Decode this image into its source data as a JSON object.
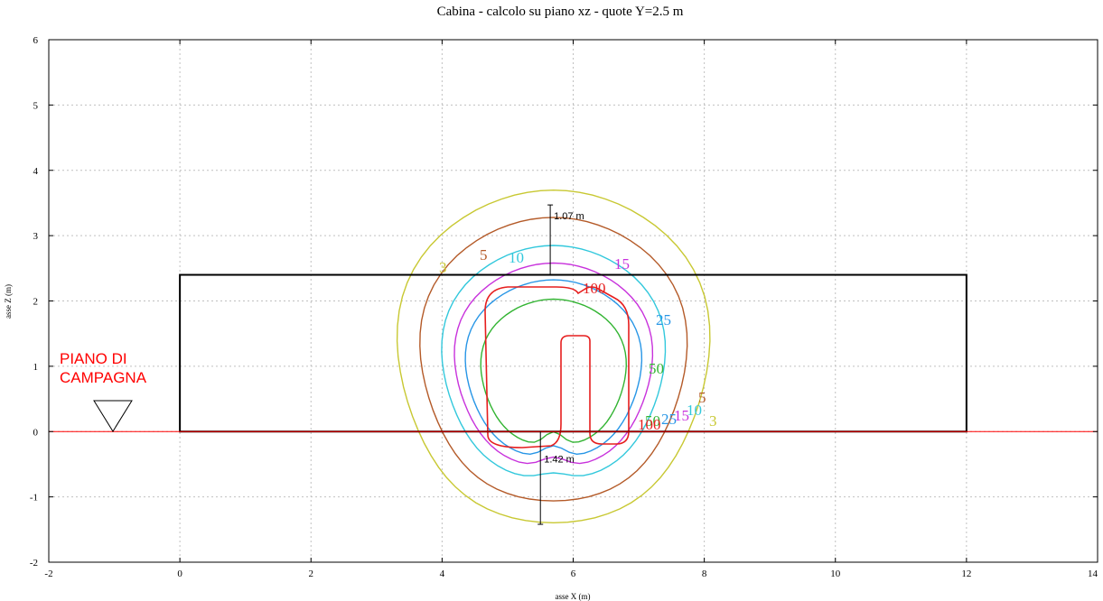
{
  "chart_data": {
    "type": "contour",
    "title": "Cabina  -  calcolo su piano xz  -  quote Y=2.5 m",
    "xlabel": "asse X (m)",
    "ylabel": "asse Z (m)",
    "xlim": [
      -2,
      14
    ],
    "ylim": [
      -2,
      6
    ],
    "x_ticks": [
      -2,
      0,
      2,
      4,
      6,
      8,
      10,
      12,
      14
    ],
    "y_ticks": [
      -2,
      -1,
      0,
      1,
      2,
      3,
      4,
      5,
      6
    ],
    "grid": true,
    "building_outline": {
      "x": [
        0,
        12
      ],
      "z": [
        0,
        2.4
      ]
    },
    "ground_level_z": 0,
    "ground_label": [
      "PIANO DI",
      "CAMPAGNA"
    ],
    "dimensions": [
      {
        "label": "1.07 m",
        "x": 5.65,
        "from_z": 2.4,
        "to_z": 3.47
      },
      {
        "label": "1.42 m",
        "x": 5.5,
        "from_z": 0,
        "to_z": -1.42
      }
    ],
    "contours": [
      {
        "level": 3,
        "color": "#c8c832",
        "labels": [
          "3",
          "3"
        ]
      },
      {
        "level": 5,
        "color": "#b45a28",
        "labels": [
          "5",
          "5"
        ]
      },
      {
        "level": 10,
        "color": "#32c8dc",
        "labels": [
          "10",
          "10"
        ]
      },
      {
        "level": 15,
        "color": "#c832dc",
        "labels": [
          "15",
          "15"
        ]
      },
      {
        "level": 25,
        "color": "#2896e6",
        "labels": [
          "25",
          "25"
        ]
      },
      {
        "level": 50,
        "color": "#32b432",
        "labels": [
          "50",
          "50"
        ]
      },
      {
        "level": 100,
        "color": "#e61e1e",
        "labels": [
          "100",
          "100"
        ]
      }
    ]
  }
}
